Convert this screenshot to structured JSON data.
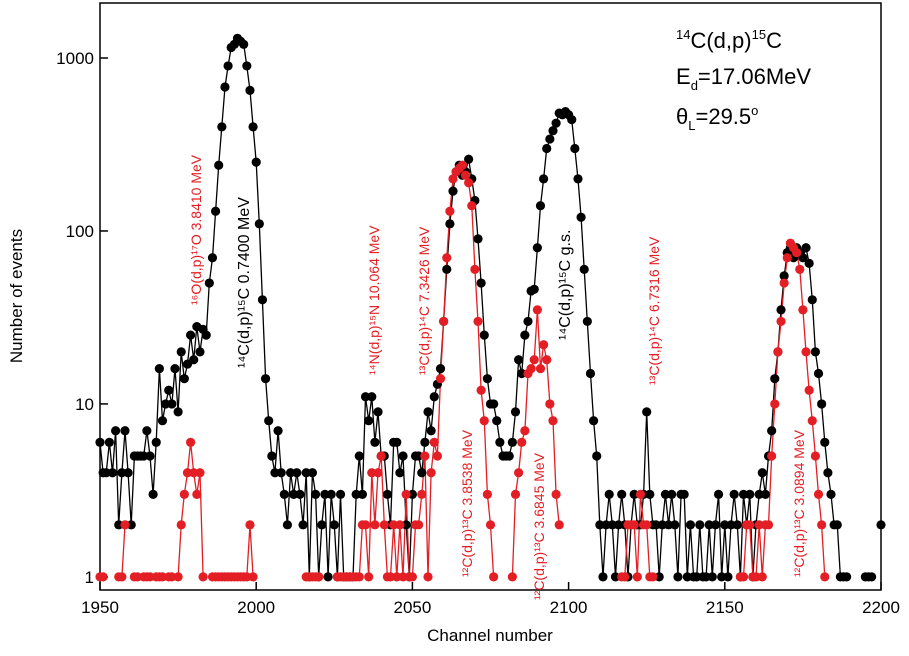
{
  "chart_data": {
    "type": "scatter-line",
    "xlabel": "Channel number",
    "ylabel": "Number of events",
    "xlim": [
      1950,
      2200
    ],
    "xticks": [
      1950,
      2000,
      2050,
      2100,
      2150,
      2200
    ],
    "ylim": [
      0.84,
      2080
    ],
    "yticks": [
      1,
      10,
      100,
      1000
    ],
    "log_y": true,
    "grid": false,
    "x": [
      1950,
      1951,
      1952,
      1953,
      1954,
      1955,
      1956,
      1957,
      1958,
      1959,
      1960,
      1961,
      1962,
      1963,
      1964,
      1965,
      1966,
      1967,
      1968,
      1969,
      1970,
      1971,
      1972,
      1973,
      1974,
      1975,
      1976,
      1977,
      1978,
      1979,
      1980,
      1981,
      1982,
      1983,
      1984,
      1985,
      1986,
      1987,
      1988,
      1989,
      1990,
      1991,
      1992,
      1993,
      1994,
      1995,
      1996,
      1997,
      1998,
      1999,
      2000,
      2001,
      2002,
      2003,
      2004,
      2005,
      2006,
      2007,
      2008,
      2009,
      2010,
      2011,
      2012,
      2013,
      2014,
      2015,
      2016,
      2017,
      2018,
      2019,
      2020,
      2021,
      2022,
      2023,
      2024,
      2025,
      2026,
      2027,
      2028,
      2029,
      2030,
      2031,
      2032,
      2033,
      2034,
      2035,
      2036,
      2037,
      2038,
      2039,
      2040,
      2041,
      2042,
      2043,
      2044,
      2045,
      2046,
      2047,
      2048,
      2049,
      2050,
      2051,
      2052,
      2053,
      2054,
      2055,
      2056,
      2057,
      2058,
      2059,
      2060,
      2061,
      2062,
      2063,
      2064,
      2065,
      2066,
      2067,
      2068,
      2069,
      2070,
      2071,
      2072,
      2073,
      2074,
      2075,
      2076,
      2077,
      2078,
      2079,
      2080,
      2081,
      2082,
      2083,
      2084,
      2085,
      2086,
      2087,
      2088,
      2089,
      2090,
      2091,
      2092,
      2093,
      2094,
      2095,
      2096,
      2097,
      2098,
      2099,
      2100,
      2101,
      2102,
      2103,
      2104,
      2105,
      2106,
      2107,
      2108,
      2109,
      2110,
      2111,
      2112,
      2113,
      2114,
      2115,
      2116,
      2117,
      2118,
      2119,
      2120,
      2121,
      2122,
      2123,
      2124,
      2125,
      2126,
      2127,
      2128,
      2129,
      2130,
      2131,
      2132,
      2133,
      2134,
      2135,
      2136,
      2137,
      2138,
      2139,
      2140,
      2141,
      2142,
      2143,
      2144,
      2145,
      2146,
      2147,
      2148,
      2149,
      2150,
      2151,
      2152,
      2153,
      2154,
      2155,
      2156,
      2157,
      2158,
      2159,
      2160,
      2161,
      2162,
      2163,
      2164,
      2165,
      2166,
      2167,
      2168,
      2169,
      2170,
      2171,
      2172,
      2173,
      2174,
      2175,
      2176,
      2177,
      2178,
      2179,
      2180,
      2181,
      2182,
      2183,
      2184,
      2185,
      2186,
      2187,
      2188,
      2189,
      2190,
      2191,
      2192,
      2193,
      2194,
      2195,
      2196,
      2197,
      2198,
      2199,
      2200
    ],
    "series": [
      {
        "color": "#000000",
        "values": [
          6,
          4,
          4,
          6,
          4,
          7,
          2,
          4,
          7,
          4,
          2,
          5,
          5,
          5,
          5,
          7,
          5,
          3,
          6,
          16,
          8,
          10,
          12,
          10,
          16,
          9,
          20,
          14,
          17,
          25,
          18,
          28,
          20,
          27,
          25,
          50,
          70,
          130,
          240,
          400,
          680,
          900,
          1150,
          1200,
          1300,
          1250,
          1200,
          900,
          650,
          400,
          250,
          110,
          40,
          14,
          8,
          5,
          4,
          7,
          4,
          3,
          2,
          4,
          3,
          4,
          3,
          2,
          4,
          1,
          4,
          3,
          1,
          2,
          3,
          1,
          3,
          2,
          1,
          3,
          1,
          1,
          1,
          1,
          3,
          5,
          3,
          11,
          8,
          11,
          6,
          9,
          5,
          5,
          3,
          2,
          6,
          6,
          4,
          5,
          2,
          1,
          3,
          5,
          5,
          4,
          6,
          9,
          7,
          11,
          13,
          16,
          30,
          60,
          110,
          170,
          220,
          240,
          210,
          220,
          260,
          200,
          150,
          90,
          50,
          25,
          14,
          10,
          10,
          8,
          6,
          5,
          5,
          5,
          6,
          9,
          18,
          15,
          25,
          30,
          45,
          46,
          80,
          140,
          200,
          300,
          340,
          380,
          420,
          480,
          470,
          490,
          470,
          440,
          300,
          200,
          120,
          60,
          30,
          15,
          8,
          5,
          2,
          1,
          2,
          3,
          2,
          1,
          2,
          3,
          2,
          1,
          2,
          3,
          2,
          2,
          3,
          9,
          3,
          2,
          2,
          1,
          2,
          3,
          2,
          3,
          2,
          1,
          3,
          3,
          1,
          2,
          1,
          1,
          2,
          1,
          1,
          2,
          1,
          2,
          3,
          1,
          2,
          1,
          2,
          3,
          2,
          1,
          3,
          2,
          3,
          1,
          2,
          3,
          4,
          3,
          5,
          7,
          14,
          20,
          35,
          55,
          75,
          80,
          70,
          80,
          75,
          70,
          80,
          65,
          40,
          20,
          15,
          10,
          6,
          4,
          3,
          2,
          2,
          1,
          1,
          1,
          null,
          null,
          null,
          null,
          null,
          1,
          1,
          1,
          null,
          null,
          2
        ]
      },
      {
        "color": "#e31e24",
        "values": [
          1,
          1,
          null,
          null,
          null,
          null,
          1,
          1,
          2,
          null,
          null,
          1,
          1,
          null,
          1,
          1,
          1,
          null,
          1,
          1,
          1,
          null,
          1,
          1,
          null,
          1,
          2,
          3,
          4,
          6,
          4,
          3,
          4,
          1,
          null,
          null,
          1,
          1,
          1,
          1,
          1,
          1,
          1,
          1,
          1,
          1,
          1,
          1,
          2,
          1,
          null,
          null,
          null,
          null,
          null,
          null,
          null,
          null,
          null,
          null,
          null,
          null,
          null,
          null,
          null,
          null,
          1,
          1,
          1,
          1,
          1,
          null,
          null,
          null,
          null,
          null,
          1,
          1,
          1,
          1,
          1,
          1,
          1,
          1,
          2,
          2,
          1,
          4,
          2,
          4,
          5,
          2,
          1,
          1,
          2,
          1,
          2,
          1,
          3,
          1,
          1,
          2,
          2,
          3,
          5,
          1,
          4,
          6,
          5,
          14,
          30,
          70,
          130,
          200,
          220,
          230,
          240,
          210,
          190,
          140,
          60,
          30,
          12,
          8,
          3,
          2,
          1,
          null,
          null,
          null,
          null,
          null,
          1,
          3,
          4,
          6,
          7,
          15,
          16,
          18,
          35,
          16,
          22,
          18,
          10,
          8,
          3,
          2,
          null,
          null,
          null,
          null,
          null,
          null,
          null,
          null,
          null,
          null,
          null,
          null,
          null,
          null,
          null,
          null,
          null,
          null,
          null,
          1,
          1,
          2,
          2,
          2,
          1,
          3,
          2,
          2,
          1,
          1,
          null,
          null,
          null,
          null,
          null,
          null,
          null,
          null,
          null,
          null,
          null,
          null,
          null,
          null,
          null,
          null,
          null,
          null,
          null,
          null,
          null,
          null,
          null,
          null,
          null,
          null,
          null,
          1,
          1,
          2,
          2,
          1,
          1,
          2,
          1,
          2,
          2,
          5,
          10,
          20,
          30,
          50,
          70,
          85,
          80,
          75,
          60,
          35,
          20,
          12,
          8,
          5,
          3,
          2,
          1,
          null,
          null,
          null,
          null,
          null,
          null,
          null,
          null,
          null,
          null,
          null,
          null,
          null,
          null,
          null,
          null,
          null,
          null
        ]
      }
    ],
    "annotations": [
      {
        "text": "¹⁶O(d,p)¹⁷O 3.8410 MeV",
        "color": "#e31e24"
      },
      {
        "text": "¹⁴C(d,p)¹⁵C 0.7400 MeV",
        "color": "#000000"
      },
      {
        "text": "¹⁴N(d,p)¹⁵N 10.064 MeV",
        "color": "#e31e24"
      },
      {
        "text": "¹³C(d,p)¹⁴C 7.3426 MeV",
        "color": "#e31e24"
      },
      {
        "text": "¹²C(d,p)¹³C 3.8538 MeV",
        "color": "#e31e24"
      },
      {
        "text": "¹²C(d,p)¹³C 3.6845 MeV",
        "color": "#e31e24"
      },
      {
        "text": "¹⁴C(d,p)¹⁵C g.s.",
        "color": "#000000"
      },
      {
        "text": "¹³C(d,p)¹⁴C 6.7316 MeV",
        "color": "#e31e24"
      },
      {
        "text": "¹²C(d,p)¹³C 3.0894 MeV",
        "color": "#e31e24"
      }
    ],
    "info": [
      [
        {
          "text": "14",
          "pos": "sup"
        },
        {
          "text": "C(d,p)"
        },
        {
          "text": "15",
          "pos": "sup"
        },
        {
          "text": "C"
        }
      ],
      [
        {
          "text": "E"
        },
        {
          "text": "d",
          "pos": "sub"
        },
        {
          "text": "=17.06MeV"
        }
      ],
      [
        {
          "text": "θ"
        },
        {
          "text": "L",
          "pos": "sub"
        },
        {
          "text": "=29.5"
        },
        {
          "text": "o",
          "pos": "sup"
        }
      ]
    ]
  }
}
